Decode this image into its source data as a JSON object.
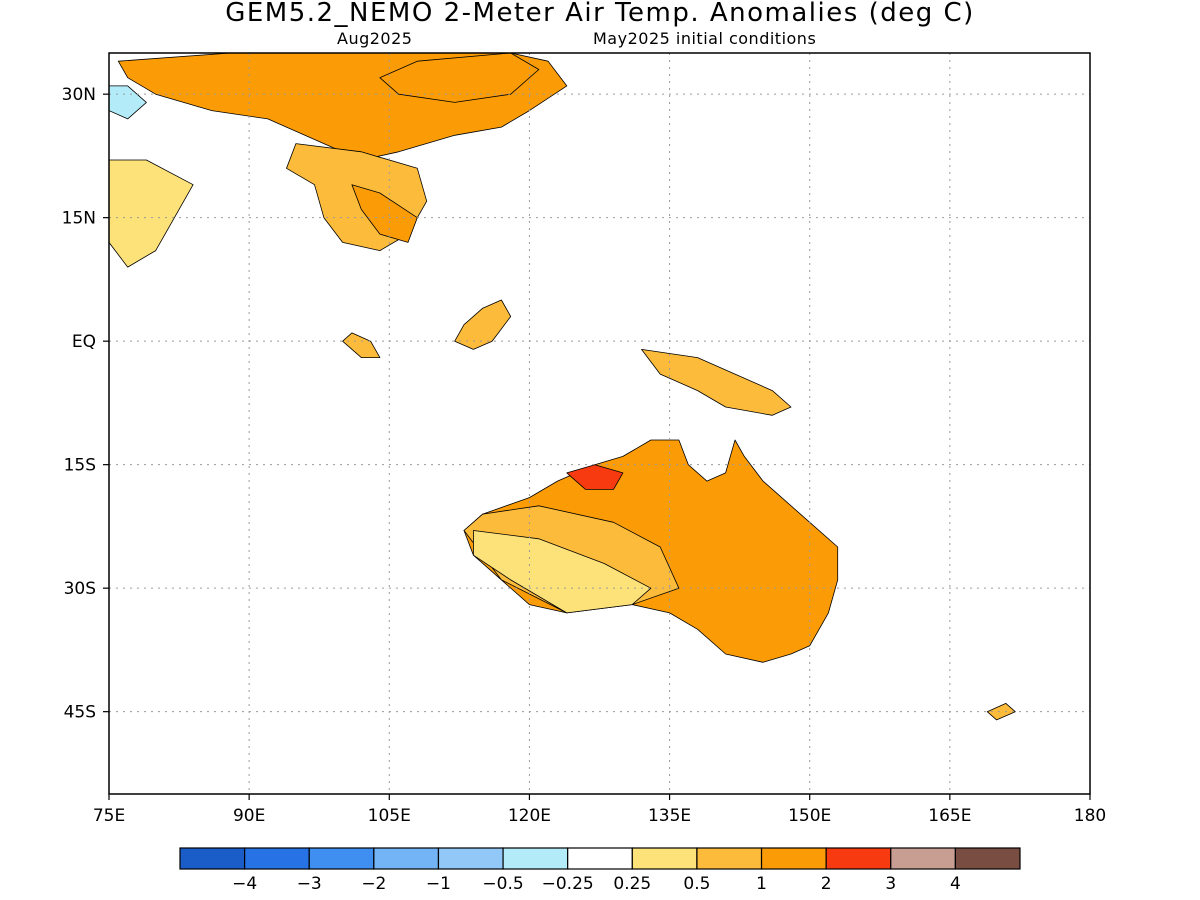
{
  "header": {
    "title": "GEM5.2_NEMO 2-Meter Air Temp. Anomalies (deg C)",
    "valid_month": "Aug2025",
    "init_conditions": "May2025 initial conditions"
  },
  "map": {
    "lon_range": [
      75,
      180
    ],
    "lat_range": [
      -55,
      35
    ],
    "lon_ticks": [
      {
        "value": 75,
        "label": "75E"
      },
      {
        "value": 90,
        "label": "90E"
      },
      {
        "value": 105,
        "label": "105E"
      },
      {
        "value": 120,
        "label": "120E"
      },
      {
        "value": 135,
        "label": "135E"
      },
      {
        "value": 150,
        "label": "150E"
      },
      {
        "value": 165,
        "label": "165E"
      },
      {
        "value": 180,
        "label": "180"
      }
    ],
    "lat_ticks": [
      {
        "value": 30,
        "label": "30N"
      },
      {
        "value": 15,
        "label": "15N"
      },
      {
        "value": 0,
        "label": "EQ"
      },
      {
        "value": -15,
        "label": "15S"
      },
      {
        "value": -30,
        "label": "30S"
      },
      {
        "value": -45,
        "label": "45S"
      }
    ],
    "gridlines": true,
    "regions": [
      {
        "name": "china-warm",
        "bin": "1..2",
        "pts": [
          [
            76,
            34
          ],
          [
            88,
            35
          ],
          [
            118,
            35
          ],
          [
            122,
            34
          ],
          [
            124,
            31
          ],
          [
            120,
            28
          ],
          [
            117,
            26
          ],
          [
            112,
            25
          ],
          [
            106,
            23
          ],
          [
            102,
            22
          ],
          [
            98,
            24
          ],
          [
            92,
            27
          ],
          [
            86,
            28
          ],
          [
            80,
            30
          ],
          [
            77,
            32
          ]
        ]
      },
      {
        "name": "china-core",
        "bin": "1..2",
        "pts": [
          [
            108,
            34
          ],
          [
            118,
            35
          ],
          [
            121,
            33
          ],
          [
            118,
            30
          ],
          [
            112,
            29
          ],
          [
            106,
            30
          ],
          [
            104,
            32
          ]
        ]
      },
      {
        "name": "indochina",
        "bin": "0.5..1",
        "pts": [
          [
            95,
            24
          ],
          [
            102,
            23
          ],
          [
            108,
            21
          ],
          [
            109,
            17
          ],
          [
            107,
            13
          ],
          [
            104,
            11
          ],
          [
            100,
            12
          ],
          [
            98,
            15
          ],
          [
            97,
            19
          ],
          [
            94,
            21
          ]
        ]
      },
      {
        "name": "indochina-warm",
        "bin": "1..2",
        "pts": [
          [
            101,
            19
          ],
          [
            104,
            18
          ],
          [
            108,
            15
          ],
          [
            107,
            12
          ],
          [
            104,
            13
          ],
          [
            102,
            16
          ]
        ]
      },
      {
        "name": "india",
        "bin": "0.25..0.5",
        "pts": [
          [
            75,
            22
          ],
          [
            79,
            22
          ],
          [
            84,
            19
          ],
          [
            82,
            15
          ],
          [
            80,
            11
          ],
          [
            77,
            9
          ],
          [
            75,
            12
          ]
        ]
      },
      {
        "name": "borneo",
        "bin": "0.5..1",
        "pts": [
          [
            113,
            2
          ],
          [
            115,
            4
          ],
          [
            117,
            5
          ],
          [
            118,
            3
          ],
          [
            116,
            0
          ],
          [
            114,
            -1
          ],
          [
            112,
            0
          ]
        ]
      },
      {
        "name": "sumatra",
        "bin": "0.5..1",
        "pts": [
          [
            101,
            1
          ],
          [
            103,
            0
          ],
          [
            104,
            -2
          ],
          [
            102,
            -2
          ],
          [
            100,
            0
          ]
        ]
      },
      {
        "name": "new-guinea",
        "bin": "0.5..1",
        "pts": [
          [
            132,
            -1
          ],
          [
            138,
            -2
          ],
          [
            142,
            -4
          ],
          [
            146,
            -6
          ],
          [
            148,
            -8
          ],
          [
            146,
            -9
          ],
          [
            141,
            -8
          ],
          [
            138,
            -6
          ],
          [
            134,
            -4
          ]
        ]
      },
      {
        "name": "australia",
        "bin": "1..2",
        "pts": [
          [
            115,
            -21
          ],
          [
            120,
            -19
          ],
          [
            123,
            -17
          ],
          [
            127,
            -15
          ],
          [
            130,
            -14
          ],
          [
            133,
            -12
          ],
          [
            136,
            -12
          ],
          [
            137,
            -15
          ],
          [
            139,
            -17
          ],
          [
            141,
            -16
          ],
          [
            142,
            -12
          ],
          [
            143,
            -14
          ],
          [
            145,
            -17
          ],
          [
            147,
            -19
          ],
          [
            150,
            -22
          ],
          [
            153,
            -25
          ],
          [
            153,
            -29
          ],
          [
            152,
            -33
          ],
          [
            150,
            -37
          ],
          [
            148,
            -38
          ],
          [
            145,
            -39
          ],
          [
            141,
            -38
          ],
          [
            138,
            -35
          ],
          [
            135,
            -33
          ],
          [
            131,
            -32
          ],
          [
            127,
            -32
          ],
          [
            124,
            -33
          ],
          [
            120,
            -32
          ],
          [
            117,
            -29
          ],
          [
            114,
            -26
          ],
          [
            113,
            -23
          ]
        ]
      },
      {
        "name": "australia-west",
        "bin": "0.5..1",
        "pts": [
          [
            115,
            -21
          ],
          [
            121,
            -20
          ],
          [
            129,
            -22
          ],
          [
            134,
            -25
          ],
          [
            136,
            -30
          ],
          [
            131,
            -32
          ],
          [
            124,
            -33
          ],
          [
            117,
            -29
          ],
          [
            113,
            -23
          ]
        ]
      },
      {
        "name": "australia-sw",
        "bin": "0.25..0.5",
        "pts": [
          [
            114,
            -23
          ],
          [
            121,
            -24
          ],
          [
            128,
            -27
          ],
          [
            133,
            -30
          ],
          [
            131,
            -32
          ],
          [
            124,
            -33
          ],
          [
            118,
            -29
          ],
          [
            114,
            -26
          ]
        ]
      },
      {
        "name": "kimberley-hot",
        "bin": "2..3",
        "pts": [
          [
            124,
            -16
          ],
          [
            127,
            -15
          ],
          [
            130,
            -16
          ],
          [
            129,
            -18
          ],
          [
            126,
            -18
          ]
        ]
      },
      {
        "name": "new-zealand",
        "bin": "0.5..1",
        "pts": [
          [
            169,
            -45
          ],
          [
            171,
            -44
          ],
          [
            172,
            -45
          ],
          [
            170,
            -46
          ]
        ]
      },
      {
        "name": "himalaya-cool",
        "bin": "-0.5..-0.25",
        "pts": [
          [
            75,
            31
          ],
          [
            77,
            31
          ],
          [
            79,
            29
          ],
          [
            77,
            27
          ],
          [
            75,
            28
          ]
        ]
      }
    ]
  },
  "colorbar": {
    "colors": [
      "#1a5cc8",
      "#2773e6",
      "#3e8ff0",
      "#72b4f5",
      "#91c8f7",
      "#b3ecf8",
      "#ffffff",
      "#fde27a",
      "#fdbb3b",
      "#fb9c07",
      "#f83a10",
      "#c99e92",
      "#7a4d42"
    ],
    "labels": [
      "-4",
      "-3",
      "-2",
      "-1",
      "-0.5",
      "-0.25",
      "0.25",
      "0.5",
      "1",
      "2",
      "3",
      "4"
    ]
  }
}
